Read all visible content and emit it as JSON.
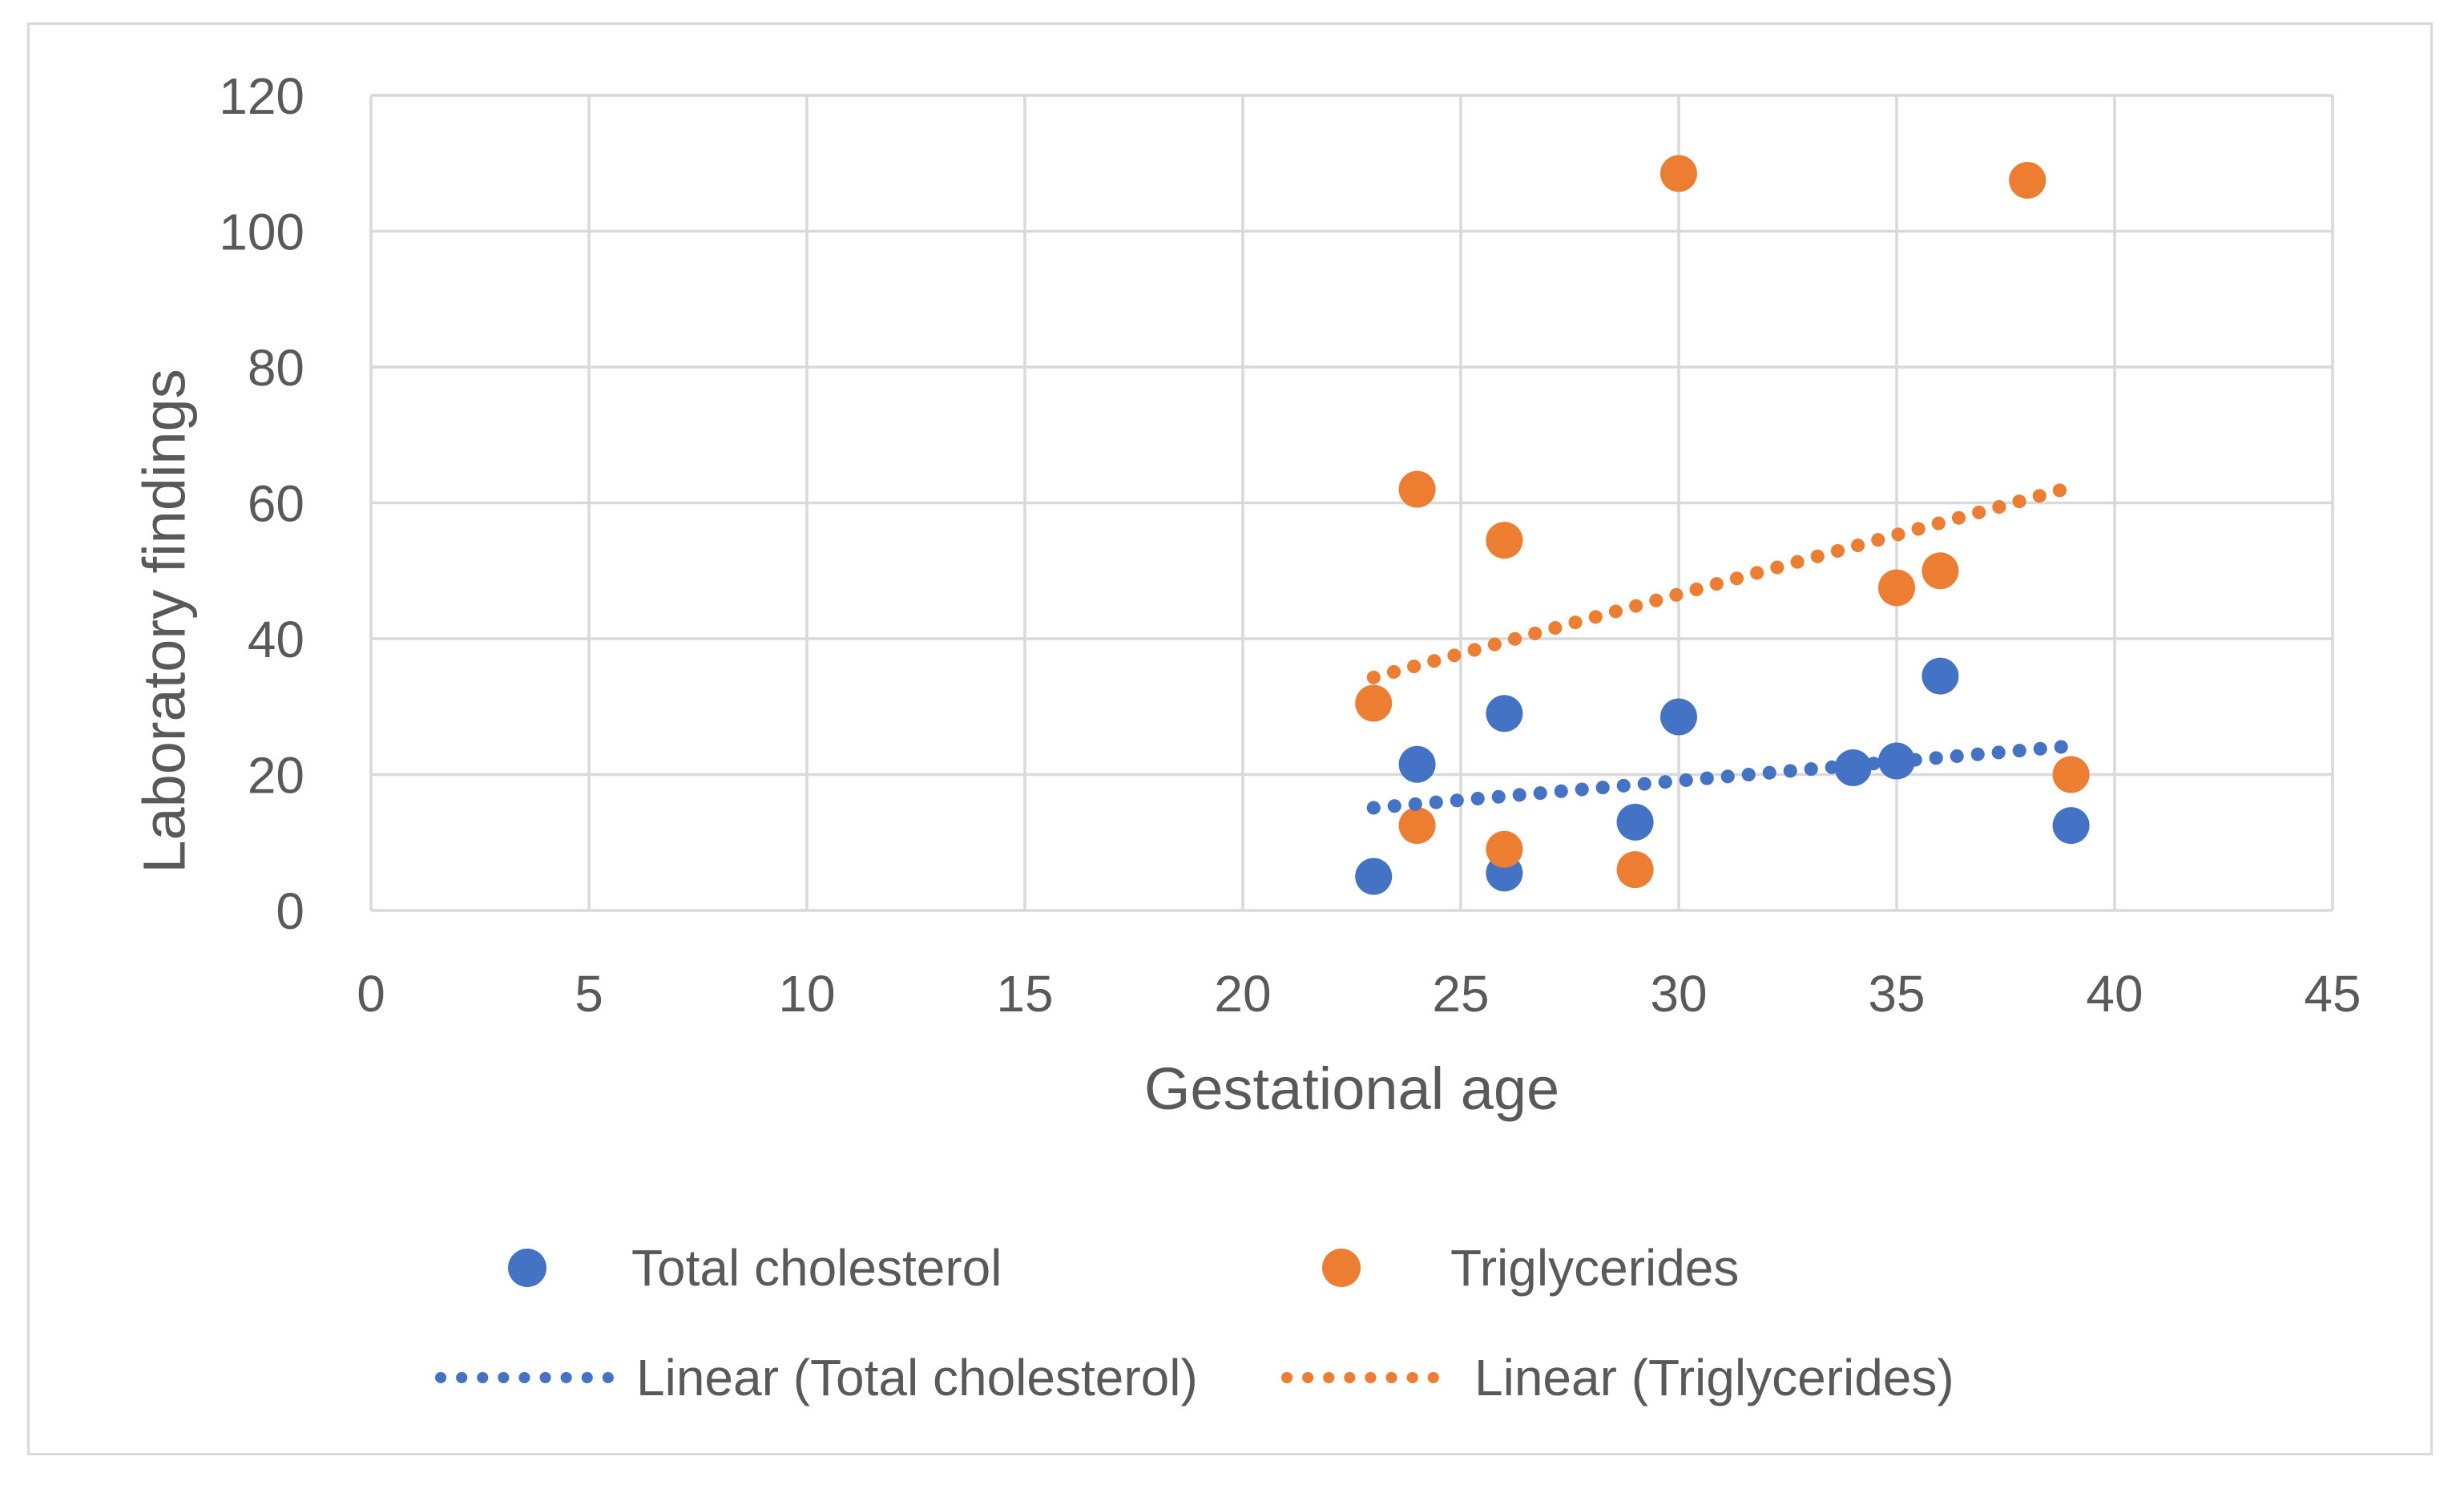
{
  "chart_data": {
    "type": "scatter",
    "xlabel": "Gestational age",
    "ylabel": "Laboratory findings",
    "xlim": [
      0,
      45
    ],
    "ylim": [
      0,
      120
    ],
    "xticks": [
      0,
      5,
      10,
      15,
      20,
      25,
      30,
      35,
      40,
      45
    ],
    "yticks": [
      0,
      20,
      40,
      60,
      80,
      100,
      120
    ],
    "grid": true,
    "legend_position": "bottom",
    "series": [
      {
        "name": "Total cholesterol",
        "color": "#4472C4",
        "points": [
          [
            23,
            5
          ],
          [
            24,
            21.5
          ],
          [
            26,
            5.5
          ],
          [
            26,
            29
          ],
          [
            29,
            13
          ],
          [
            30,
            28.5
          ],
          [
            34,
            21
          ],
          [
            35,
            22
          ],
          [
            36,
            34.5
          ],
          [
            39,
            12.5
          ]
        ]
      },
      {
        "name": "Triglycerides",
        "color": "#ED7D31",
        "points": [
          [
            23,
            30.5
          ],
          [
            24,
            12.5
          ],
          [
            24,
            62
          ],
          [
            26,
            9
          ],
          [
            26,
            54.5
          ],
          [
            29,
            6
          ],
          [
            30,
            108.5
          ],
          [
            35,
            47.5
          ],
          [
            36,
            50
          ],
          [
            38,
            107.5
          ],
          [
            39,
            20
          ]
        ]
      }
    ],
    "trendlines": [
      {
        "name": "Linear (Total cholesterol)",
        "color": "#4472C4",
        "x": [
          23,
          39
        ],
        "y": [
          15.1,
          24.2
        ]
      },
      {
        "name": "Linear (Triglycerides)",
        "color": "#ED7D31",
        "x": [
          23,
          39
        ],
        "y": [
          34.3,
          62.3
        ]
      }
    ],
    "colors": {
      "gridline": "#D9D9D9",
      "axis_text": "#595959",
      "chart_border": "#D9D9D9",
      "background": "#FFFFFF"
    }
  }
}
